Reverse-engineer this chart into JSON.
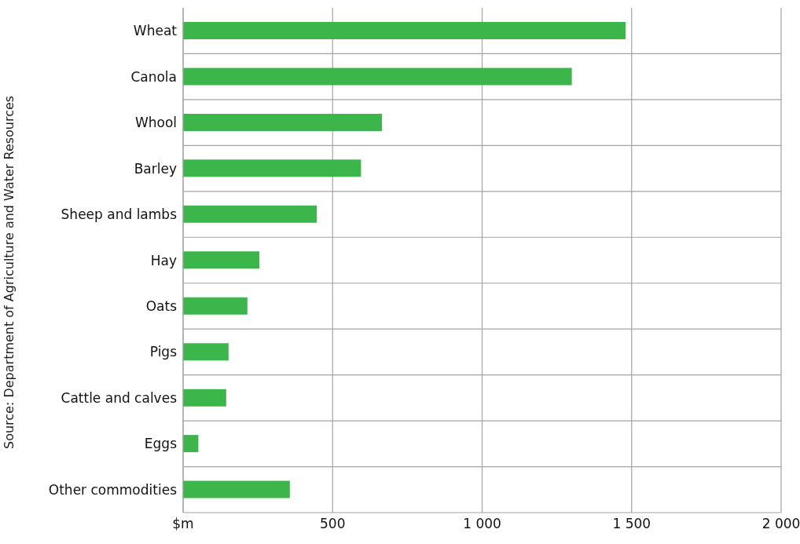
{
  "chart_data": {
    "type": "bar",
    "orientation": "horizontal",
    "categories": [
      "Wheat",
      "Canola",
      "Whool",
      "Barley",
      "Sheep and lambs",
      "Hay",
      "Oats",
      "Pigs",
      "Cattle and calves",
      "Eggs",
      "Other commodities"
    ],
    "values": [
      1480,
      1300,
      665,
      595,
      447,
      255,
      215,
      152,
      144,
      51,
      357
    ],
    "color": "#3cb54a",
    "xlim": [
      0,
      2000
    ],
    "xticks": [
      {
        "value": 0,
        "label": "$m"
      },
      {
        "value": 500,
        "label": "500"
      },
      {
        "value": 1000,
        "label": "1 000"
      },
      {
        "value": 1500,
        "label": "1 500"
      },
      {
        "value": 2000,
        "label": "2 000"
      }
    ],
    "grid": true,
    "annotations": [
      "Source: Department of Agriculture and Water Resources"
    ]
  }
}
